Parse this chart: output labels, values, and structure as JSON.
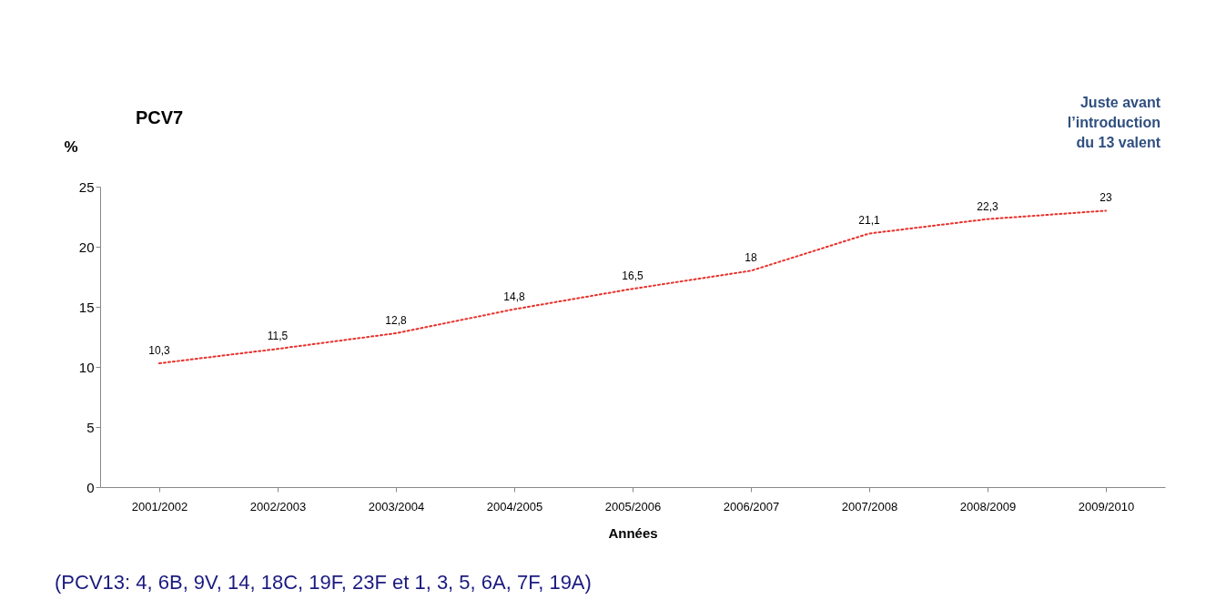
{
  "chart_data": {
    "type": "line",
    "xlabel": "Années",
    "ylabel": "%",
    "categories": [
      "2001/2002",
      "2002/2003",
      "2003/2004",
      "2004/2005",
      "2005/2006",
      "2006/2007",
      "2007/2008",
      "2008/2009",
      "2009/2010"
    ],
    "series": [
      {
        "color": "#e8302a",
        "values": [
          10.3,
          11.5,
          12.8,
          14.8,
          16.5,
          18,
          21.1,
          22.3,
          23
        ],
        "value_labels": [
          "10,3",
          "11,5",
          "12,8",
          "14,8",
          "16,5",
          "18",
          "21,1",
          "22,3",
          "23"
        ]
      }
    ],
    "ylim": [
      0,
      25
    ],
    "yticks": [
      0,
      5,
      10,
      15,
      20,
      25
    ],
    "grid": false,
    "marker": "none",
    "line_style": "dotted",
    "annotations": [
      "PCV7",
      "Juste avant l’introduction du 13 valent",
      "(PCV13: 4, 6B, 9V, 14, 18C, 19F, 23F et 1, 3, 5, 6A, 7F, 19A)"
    ]
  }
}
